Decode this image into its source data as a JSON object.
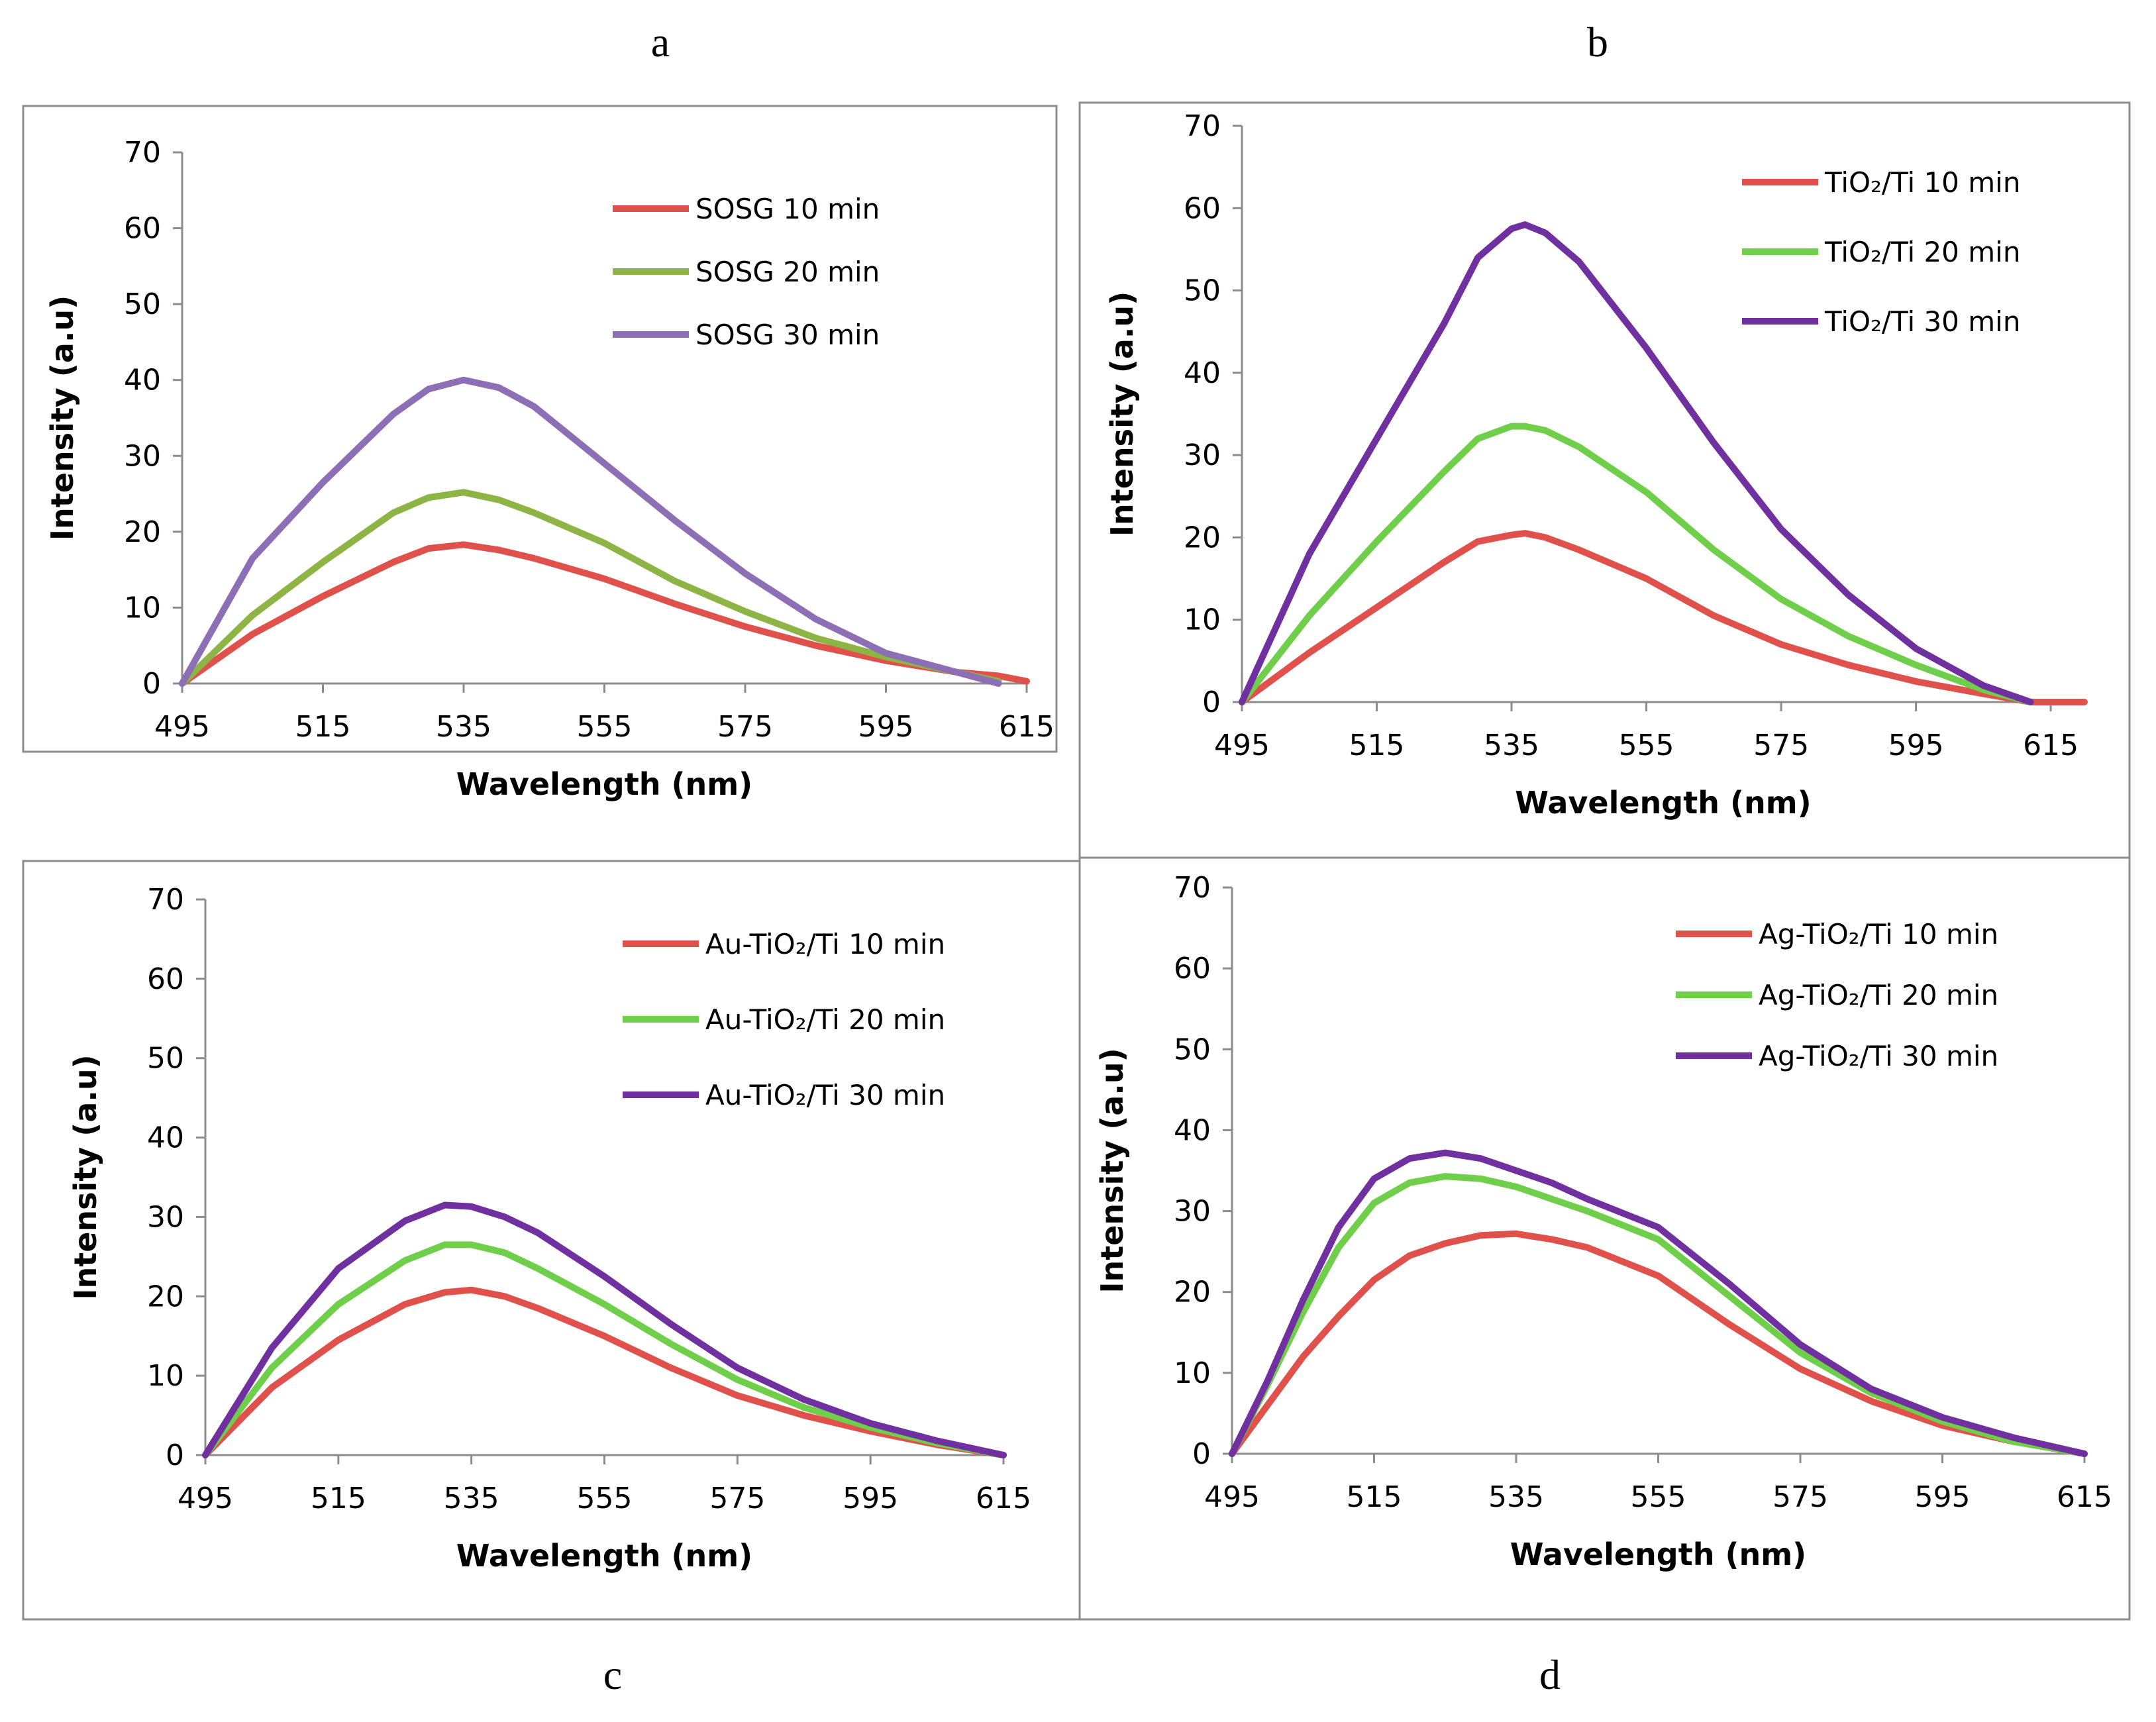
{
  "chart_data": [
    {
      "panel": "a",
      "type": "line",
      "xlabel": "Wavelength (nm)",
      "ylabel": "Intensity (a.u)",
      "xlim": [
        495,
        615
      ],
      "ylim": [
        0,
        70
      ],
      "xticks": [
        "495",
        "515",
        "535",
        "555",
        "575",
        "595",
        "615"
      ],
      "yticks": [
        "0",
        "10",
        "20",
        "30",
        "40",
        "50",
        "60",
        "70"
      ],
      "legend_position": "top-right",
      "x": [
        495,
        505,
        515,
        525,
        530,
        535,
        540,
        545,
        555,
        565,
        575,
        585,
        595,
        605,
        611,
        615
      ],
      "series": [
        {
          "name": "SOSG 10 min",
          "color": "#e0514c",
          "values": [
            0,
            6.5,
            11.5,
            16,
            17.8,
            18.3,
            17.6,
            16.5,
            13.8,
            10.5,
            7.5,
            5,
            3,
            1.5,
            1,
            0.3
          ]
        },
        {
          "name": "SOSG 20 min",
          "color": "#8cb545",
          "values": [
            0,
            9,
            16,
            22.5,
            24.5,
            25.2,
            24.2,
            22.5,
            18.5,
            13.5,
            9.5,
            6,
            3.5,
            1.5,
            0.3,
            null
          ]
        },
        {
          "name": "SOSG 30 min",
          "color": "#8c6fb5",
          "values": [
            0,
            16.5,
            26.5,
            35.5,
            38.8,
            40,
            39,
            36.5,
            29,
            21.5,
            14.5,
            8.5,
            4,
            1.5,
            0,
            null
          ]
        }
      ]
    },
    {
      "panel": "b",
      "type": "line",
      "xlabel": "Wavelength (nm)",
      "ylabel": "Intensity (a.u)",
      "xlim": [
        495,
        620
      ],
      "ylim": [
        0,
        70
      ],
      "xticks": [
        "495",
        "515",
        "535",
        "555",
        "575",
        "595",
        "615"
      ],
      "yticks": [
        "0",
        "10",
        "20",
        "30",
        "40",
        "50",
        "60",
        "70"
      ],
      "legend_position": "top-right",
      "x": [
        495,
        505,
        515,
        525,
        530,
        535,
        537,
        540,
        545,
        555,
        565,
        575,
        585,
        595,
        605,
        612,
        615,
        620
      ],
      "series": [
        {
          "name": "TiO₂/Ti 10 min",
          "color": "#e0514c",
          "values": [
            0,
            6,
            11.5,
            17,
            19.5,
            20.3,
            20.5,
            20,
            18.5,
            15,
            10.5,
            7,
            4.5,
            2.5,
            1,
            0,
            0,
            0
          ]
        },
        {
          "name": "TiO₂/Ti 20 min",
          "color": "#6fcf4a",
          "values": [
            0,
            10.5,
            19.5,
            28,
            32,
            33.5,
            33.5,
            33,
            31,
            25.5,
            18.5,
            12.5,
            8,
            4.5,
            1.5,
            0,
            null,
            null
          ]
        },
        {
          "name": "TiO₂/Ti 30 min",
          "color": "#7030a0",
          "values": [
            0,
            18,
            32,
            46,
            54,
            57.5,
            58,
            57,
            53.5,
            43,
            31.5,
            21,
            13,
            6.5,
            2,
            0,
            null,
            null
          ]
        }
      ]
    },
    {
      "panel": "c",
      "type": "line",
      "xlabel": "Wavelength (nm)",
      "ylabel": "Intensity (a.u)",
      "xlim": [
        495,
        615
      ],
      "ylim": [
        0,
        70
      ],
      "xticks": [
        "495",
        "515",
        "535",
        "555",
        "575",
        "595",
        "615"
      ],
      "yticks": [
        "0",
        "10",
        "20",
        "30",
        "40",
        "50",
        "60",
        "70"
      ],
      "legend_position": "top-right",
      "x": [
        495,
        505,
        515,
        525,
        531,
        535,
        540,
        545,
        555,
        565,
        575,
        585,
        595,
        605,
        615
      ],
      "series": [
        {
          "name": "Au-TiO₂/Ti 10 min",
          "color": "#e0514c",
          "values": [
            0,
            8.5,
            14.5,
            19,
            20.5,
            20.8,
            20,
            18.5,
            15,
            11,
            7.5,
            5,
            3,
            1.3,
            0
          ]
        },
        {
          "name": "Au-TiO₂/Ti 20 min",
          "color": "#6fcf4a",
          "values": [
            0,
            11,
            19,
            24.5,
            26.5,
            26.5,
            25.5,
            23.5,
            19,
            14,
            9.5,
            6,
            3.5,
            1.5,
            0
          ]
        },
        {
          "name": "Au-TiO₂/Ti 30 min",
          "color": "#7030a0",
          "values": [
            0,
            13.5,
            23.5,
            29.5,
            31.5,
            31.3,
            30,
            28,
            22.5,
            16.5,
            11,
            7,
            4,
            1.8,
            0
          ]
        }
      ]
    },
    {
      "panel": "d",
      "type": "line",
      "xlabel": "Wavelength (nm)",
      "ylabel": "Intensity (a.u)",
      "xlim": [
        495,
        615
      ],
      "ylim": [
        0,
        70
      ],
      "xticks": [
        "495",
        "515",
        "535",
        "555",
        "575",
        "595",
        "615"
      ],
      "yticks": [
        "0",
        "10",
        "20",
        "30",
        "40",
        "50",
        "60",
        "70"
      ],
      "legend_position": "top-right",
      "x": [
        495,
        500,
        505,
        510,
        515,
        520,
        525,
        530,
        535,
        540,
        545,
        555,
        565,
        575,
        585,
        595,
        605,
        615
      ],
      "series": [
        {
          "name": "Ag-TiO₂/Ti 10 min",
          "color": "#e0514c",
          "values": [
            0,
            6,
            12,
            17,
            21.5,
            24.5,
            26,
            27,
            27.2,
            26.5,
            25.5,
            22,
            16,
            10.5,
            6.5,
            3.5,
            1.5,
            0
          ]
        },
        {
          "name": "Ag-TiO₂/Ti 20 min",
          "color": "#6fcf4a",
          "values": [
            0,
            8.5,
            17.5,
            25.5,
            31,
            33.5,
            34.3,
            34,
            33,
            31.5,
            30,
            26.5,
            19.5,
            12.5,
            7.5,
            4,
            1.5,
            0
          ]
        },
        {
          "name": "Ag-TiO₂/Ti 30 min",
          "color": "#7030a0",
          "values": [
            0,
            9,
            19,
            28,
            34,
            36.5,
            37.2,
            36.5,
            35,
            33.5,
            31.5,
            28,
            21,
            13.5,
            8,
            4.5,
            2,
            0
          ]
        }
      ]
    }
  ]
}
